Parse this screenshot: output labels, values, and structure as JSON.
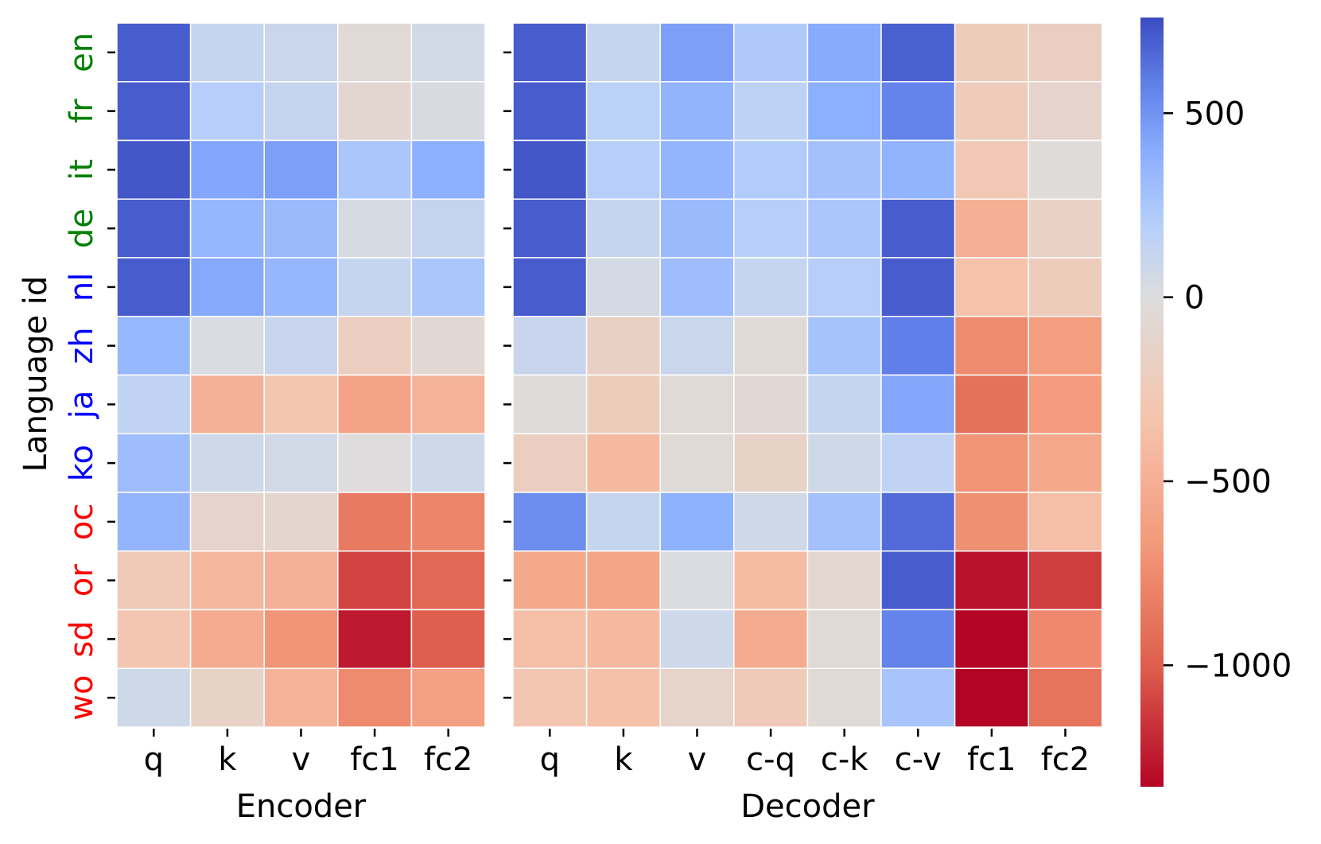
{
  "chart_data": {
    "type": "heatmap",
    "ylabel": "Language id",
    "languages": [
      "en",
      "fr",
      "it",
      "de",
      "nl",
      "zh",
      "ja",
      "ko",
      "oc",
      "or",
      "sd",
      "wo"
    ],
    "language_groups": {
      "high": [
        "en",
        "fr",
        "it",
        "de"
      ],
      "medium": [
        "nl",
        "zh",
        "ja",
        "ko"
      ],
      "low": [
        "oc",
        "or",
        "sd",
        "wo"
      ]
    },
    "group_colors": {
      "high": "#008000",
      "medium": "#0000ff",
      "low": "#ff0000"
    },
    "vmin": -1330,
    "vmax": 760,
    "colormap": "coolwarm",
    "colorbar_ticks": [
      500,
      0,
      -500,
      -1000
    ],
    "colorbar_tick_labels": [
      "500",
      "0",
      "−500",
      "−1000"
    ],
    "panels": [
      {
        "xlabel": "Encoder",
        "columns": [
          "q",
          "k",
          "v",
          "fc1",
          "fc2"
        ],
        "values": [
          [
            700,
            120,
            100,
            -50,
            60
          ],
          [
            700,
            200,
            130,
            -90,
            30
          ],
          [
            720,
            420,
            450,
            250,
            380
          ],
          [
            700,
            340,
            320,
            40,
            130
          ],
          [
            700,
            410,
            340,
            120,
            250
          ],
          [
            330,
            20,
            110,
            -200,
            -70
          ],
          [
            150,
            -480,
            -320,
            -600,
            -470
          ],
          [
            300,
            80,
            60,
            -10,
            80
          ],
          [
            350,
            -120,
            -100,
            -850,
            -780
          ],
          [
            -260,
            -430,
            -480,
            -1100,
            -950
          ],
          [
            -300,
            -530,
            -700,
            -1250,
            -1000
          ],
          [
            80,
            -150,
            -460,
            -750,
            -620
          ]
        ]
      },
      {
        "xlabel": "Decoder",
        "columns": [
          "q",
          "k",
          "v",
          "c-q",
          "c-k",
          "c-v",
          "fc1",
          "fc2"
        ],
        "values": [
          [
            700,
            120,
            450,
            230,
            400,
            690,
            -230,
            -200
          ],
          [
            700,
            180,
            360,
            160,
            380,
            560,
            -240,
            -120
          ],
          [
            720,
            200,
            350,
            220,
            280,
            360,
            -280,
            -30
          ],
          [
            700,
            120,
            320,
            200,
            250,
            700,
            -500,
            -160
          ],
          [
            700,
            50,
            300,
            120,
            200,
            700,
            -350,
            -230
          ],
          [
            110,
            -170,
            100,
            -40,
            270,
            580,
            -750,
            -630
          ],
          [
            -20,
            -230,
            -50,
            -70,
            120,
            420,
            -900,
            -650
          ],
          [
            -200,
            -420,
            -40,
            -150,
            70,
            150,
            -700,
            -550
          ],
          [
            520,
            120,
            370,
            70,
            280,
            650,
            -720,
            -380
          ],
          [
            -550,
            -580,
            20,
            -400,
            -80,
            700,
            -1280,
            -1120
          ],
          [
            -370,
            -420,
            80,
            -530,
            -40,
            560,
            -1330,
            -760
          ],
          [
            -300,
            -360,
            -130,
            -250,
            -40,
            260,
            -1330,
            -880
          ]
        ]
      }
    ]
  }
}
